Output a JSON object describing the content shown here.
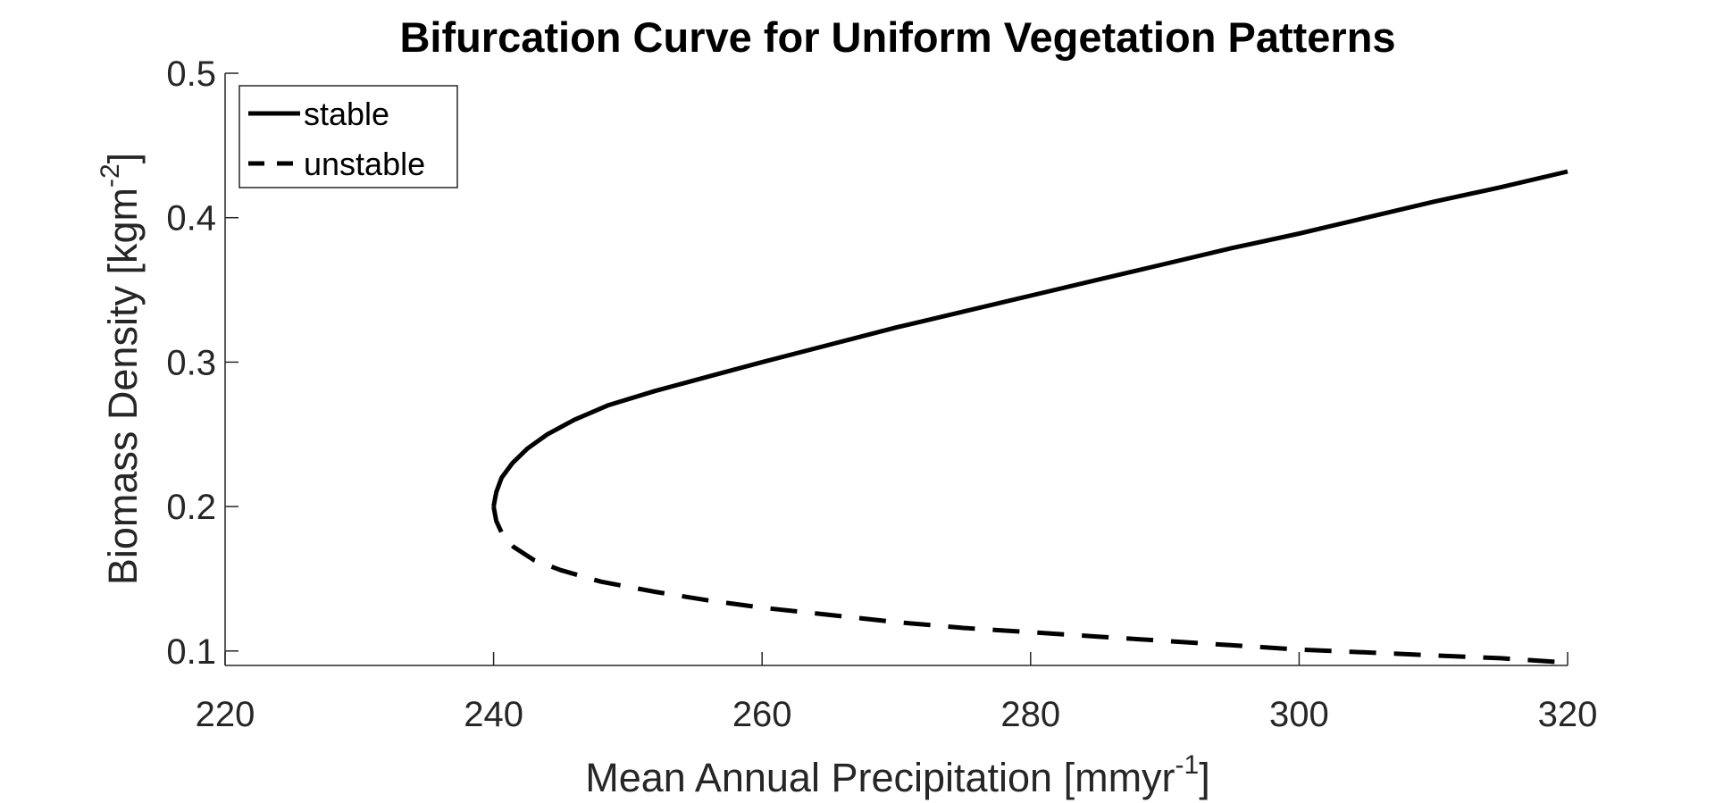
{
  "chart_data": {
    "type": "line",
    "title": "Bifurcation Curve for Uniform Vegetation Patterns",
    "xlabel": {
      "text": "Mean Annual Precipitation [mmyr",
      "superscript": "-1",
      "suffix": "]"
    },
    "ylabel": {
      "text": "Biomass Density [kgm",
      "superscript": "-2",
      "suffix": "]"
    },
    "xlim": [
      220,
      320
    ],
    "ylim": [
      0.09,
      0.5
    ],
    "xticks": [
      220,
      240,
      260,
      280,
      300,
      320
    ],
    "yticks": [
      0.1,
      0.2,
      0.3,
      0.4,
      0.5
    ],
    "xtick_labels": [
      "220",
      "240",
      "260",
      "280",
      "300",
      "320"
    ],
    "ytick_labels": [
      "0.1",
      "0.2",
      "0.3",
      "0.4",
      "0.5"
    ],
    "grid": false,
    "legend_position": "top-left",
    "series": [
      {
        "name": "stable",
        "style": "solid",
        "color": "#000000",
        "x": [
          240.0,
          240.2,
          240.6,
          241.4,
          242.5,
          244.0,
          246.0,
          248.5,
          252.0,
          256.0,
          260.0,
          265.0,
          270.0,
          275.0,
          280.0,
          285.0,
          290.0,
          295.0,
          300.0,
          305.0,
          310.0,
          315.0,
          320.0
        ],
        "y": [
          0.2,
          0.21,
          0.22,
          0.23,
          0.24,
          0.25,
          0.26,
          0.27,
          0.28,
          0.29,
          0.3,
          0.312,
          0.324,
          0.335,
          0.346,
          0.357,
          0.368,
          0.379,
          0.389,
          0.4,
          0.411,
          0.421,
          0.432
        ]
      },
      {
        "name": "unstable",
        "style": "dashed",
        "color": "#000000",
        "x": [
          240.0,
          240.2,
          240.7,
          241.5,
          243.0,
          245.0,
          248.0,
          252.0,
          256.0,
          260.0,
          265.0,
          270.0,
          275.0,
          280.0,
          285.0,
          290.0,
          295.0,
          300.0,
          305.0,
          310.0,
          315.0,
          320.0
        ],
        "y": [
          0.2,
          0.19,
          0.18,
          0.172,
          0.163,
          0.156,
          0.148,
          0.141,
          0.135,
          0.13,
          0.125,
          0.12,
          0.116,
          0.113,
          0.11,
          0.107,
          0.104,
          0.101,
          0.099,
          0.097,
          0.095,
          0.092
        ]
      }
    ]
  }
}
